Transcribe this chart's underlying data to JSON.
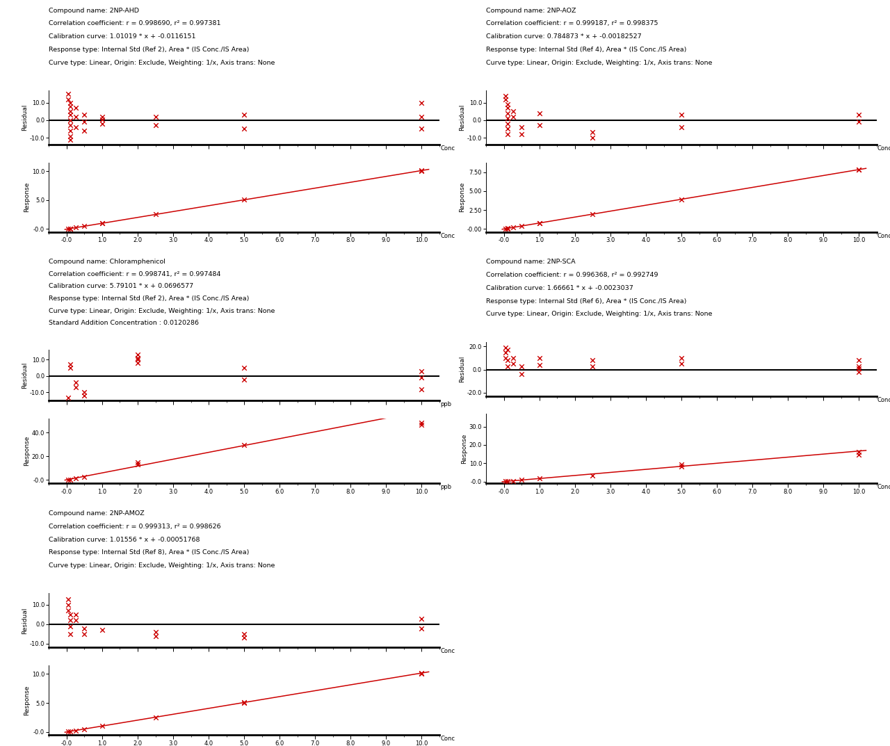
{
  "compounds": [
    {
      "name": "2NP-AHD",
      "info_lines": [
        "Compound name: 2NP-AHD",
        "Correlation coefficient: r = 0.998690, r² = 0.997381",
        "Calibration curve: 1.01019 * x + -0.0116151",
        "Response type: Internal Std (Ref 2), Area * (IS Conc./IS Area)",
        "Curve type: Linear, Origin: Exclude, Weighting: 1/x, Axis trans: None"
      ],
      "slope": 1.01019,
      "intercept": -0.0116151,
      "resp_x": [
        0.05,
        0.1,
        0.1,
        0.25,
        0.5,
        1.0,
        1.0,
        2.5,
        5.0,
        10.0,
        10.0
      ],
      "resp_y": [
        0.04,
        0.09,
        0.11,
        0.24,
        0.5,
        1.0,
        1.01,
        2.52,
        5.05,
        9.98,
        10.12
      ],
      "res_x": [
        0.05,
        0.05,
        0.1,
        0.1,
        0.1,
        0.1,
        0.1,
        0.1,
        0.1,
        0.1,
        0.1,
        0.25,
        0.25,
        0.25,
        0.5,
        0.5,
        0.5,
        1.0,
        1.0,
        1.0,
        2.5,
        2.5,
        5.0,
        5.0,
        10.0,
        10.0,
        10.0
      ],
      "res_y": [
        15,
        12,
        10,
        8,
        5,
        3,
        0,
        -3,
        -6,
        -9,
        -11,
        7,
        2,
        -4,
        3,
        -1,
        -6,
        -2,
        0.5,
        2,
        -3,
        2,
        3,
        -5,
        10,
        2,
        -5
      ],
      "xaxis_label": "Conc",
      "resp_ylim": [
        -0.5,
        11.5
      ],
      "resp_yticks": [
        0.0,
        5.0,
        10.0
      ],
      "resp_ytick_labels": [
        "-0.0",
        "5.0",
        "10.0"
      ],
      "res_ylim": [
        -14,
        17
      ],
      "res_yticks": [
        -10.0,
        0.0,
        10.0
      ],
      "res_ytick_labels": [
        "-10.0",
        "0.0",
        "10.0"
      ],
      "xlim": [
        -0.5,
        10.5
      ],
      "xticks": [
        0,
        1.0,
        2.0,
        3.0,
        4.0,
        5.0,
        6.0,
        7.0,
        8.0,
        9.0,
        10.0
      ],
      "xtick_labels": [
        "-0.0",
        "1.0",
        "2.0",
        "3.0",
        "4.0",
        "5.0",
        "6.0",
        "7.0",
        "8.0",
        "9.0",
        "10.0"
      ]
    },
    {
      "name": "2NP-AOZ",
      "info_lines": [
        "Compound name: 2NP-AOZ",
        "Correlation coefficient: r = 0.999187, r² = 0.998375",
        "Calibration curve: 0.784873 * x + -0.00182527",
        "Response type: Internal Std (Ref 4), Area * (IS Conc./IS Area)",
        "Curve type: Linear, Origin: Exclude, Weighting: 1/x, Axis trans: None"
      ],
      "slope": 0.784873,
      "intercept": -0.00182527,
      "resp_x": [
        0.05,
        0.1,
        0.1,
        0.25,
        0.5,
        1.0,
        1.0,
        2.5,
        5.0,
        10.0,
        10.0
      ],
      "resp_y": [
        0.03,
        0.07,
        0.09,
        0.2,
        0.39,
        0.78,
        0.8,
        1.98,
        3.93,
        7.8,
        7.88
      ],
      "res_x": [
        0.05,
        0.05,
        0.1,
        0.1,
        0.1,
        0.1,
        0.1,
        0.1,
        0.1,
        0.25,
        0.25,
        0.5,
        0.5,
        1.0,
        1.0,
        2.5,
        2.5,
        5.0,
        5.0,
        10.0,
        10.0
      ],
      "res_y": [
        14,
        12,
        9,
        7,
        4,
        1,
        -2,
        -5,
        -8,
        5,
        2,
        -4,
        -8,
        4,
        -3,
        -7,
        -10,
        3,
        -4,
        3,
        -1
      ],
      "xaxis_label": "Conc",
      "resp_ylim": [
        -0.4,
        8.8
      ],
      "resp_yticks": [
        0.0,
        2.5,
        5.0,
        7.5
      ],
      "resp_ytick_labels": [
        "-0.00",
        "2.50",
        "5.00",
        "7.50"
      ],
      "res_ylim": [
        -14,
        17
      ],
      "res_yticks": [
        -10.0,
        0.0,
        10.0
      ],
      "res_ytick_labels": [
        "-10.0",
        "0.0",
        "10.0"
      ],
      "xlim": [
        -0.5,
        10.5
      ],
      "xticks": [
        0,
        1.0,
        2.0,
        3.0,
        4.0,
        5.0,
        6.0,
        7.0,
        8.0,
        9.0,
        10.0
      ],
      "xtick_labels": [
        "-0.0",
        "1.0",
        "2.0",
        "3.0",
        "4.0",
        "5.0",
        "6.0",
        "7.0",
        "8.0",
        "9.0",
        "10.0"
      ]
    },
    {
      "name": "Chloramphenicol",
      "info_lines": [
        "Compound name: Chloramphenicol",
        "Correlation coefficient: r = 0.998741, r² = 0.997484",
        "Calibration curve: 5.79101 * x + 0.0696577",
        "Response type: Internal Std (Ref 2), Area * (IS Conc./IS Area)",
        "Curve type: Linear, Origin: Exclude, Weighting: 1/x, Axis trans: None",
        "Standard Addition Concentration : 0.0120286"
      ],
      "slope": 5.79101,
      "intercept": 0.0696577,
      "resp_x": [
        0.05,
        0.1,
        0.25,
        0.5,
        2.0,
        2.0,
        5.0,
        10.0,
        10.0
      ],
      "resp_y": [
        -0.2,
        0.2,
        1.2,
        2.7,
        13.0,
        14.5,
        29.5,
        46.5,
        48.0
      ],
      "res_x": [
        0.05,
        0.1,
        0.1,
        0.25,
        0.25,
        0.5,
        0.5,
        2.0,
        2.0,
        2.0,
        2.0,
        5.0,
        5.0,
        10.0,
        10.0,
        10.0
      ],
      "res_y": [
        -13,
        7,
        5,
        -4,
        -7,
        -10,
        -12,
        13,
        11,
        10,
        8,
        5,
        -2,
        3,
        -1,
        -8
      ],
      "xaxis_label": "ppb",
      "resp_ylim": [
        -3,
        52
      ],
      "resp_yticks": [
        0.0,
        20.0,
        40.0
      ],
      "resp_ytick_labels": [
        "-0.0",
        "20.0",
        "40.0"
      ],
      "res_ylim": [
        -15,
        16
      ],
      "res_yticks": [
        -10.0,
        0.0,
        10.0
      ],
      "res_ytick_labels": [
        "-10.0",
        "0.0",
        "10.0"
      ],
      "xlim": [
        -0.5,
        10.5
      ],
      "xticks": [
        0,
        1.0,
        2.0,
        3.0,
        4.0,
        5.0,
        6.0,
        7.0,
        8.0,
        9.0,
        10.0
      ],
      "xtick_labels": [
        "-0.0",
        "1.0",
        "2.0",
        "3.0",
        "4.0",
        "5.0",
        "6.0",
        "7.0",
        "8.0",
        "9.0",
        "10.0"
      ]
    },
    {
      "name": "2NP-SCA",
      "info_lines": [
        "Compound name: 2NP-SCA",
        "Correlation coefficient: r = 0.996368, r² = 0.992749",
        "Calibration curve: 1.66661 * x + -0.0023037",
        "Response type: Internal Std (Ref 6), Area * (IS Conc./IS Area)",
        "Curve type: Linear, Origin: Exclude, Weighting: 1/x, Axis trans: None"
      ],
      "slope": 1.66661,
      "intercept": -0.0023037,
      "resp_x": [
        0.05,
        0.1,
        0.25,
        0.5,
        1.0,
        2.5,
        5.0,
        5.0,
        10.0,
        10.0
      ],
      "resp_y": [
        0.05,
        0.15,
        0.4,
        0.82,
        1.65,
        3.2,
        8.3,
        9.2,
        14.5,
        16.0
      ],
      "res_x": [
        0.05,
        0.05,
        0.05,
        0.1,
        0.1,
        0.1,
        0.25,
        0.25,
        0.5,
        0.5,
        1.0,
        1.0,
        2.5,
        2.5,
        5.0,
        5.0,
        10.0,
        10.0,
        10.0,
        10.0
      ],
      "res_y": [
        19,
        15,
        10,
        17,
        8,
        3,
        10,
        5,
        3,
        -4,
        10,
        4,
        8,
        3,
        10,
        5,
        8,
        3,
        1,
        -2
      ],
      "xaxis_label": "Conc",
      "resp_ylim": [
        -1,
        37
      ],
      "resp_yticks": [
        0.0,
        10.0,
        20.0,
        30.0
      ],
      "resp_ytick_labels": [
        "-0.0",
        "10.0",
        "20.0",
        "30.0"
      ],
      "res_ylim": [
        -23,
        24
      ],
      "res_yticks": [
        -20.0,
        0.0,
        20.0
      ],
      "res_ytick_labels": [
        "-20.0",
        "0.0",
        "20.0"
      ],
      "xlim": [
        -0.5,
        10.5
      ],
      "xticks": [
        0,
        1.0,
        2.0,
        3.0,
        4.0,
        5.0,
        6.0,
        7.0,
        8.0,
        9.0,
        10.0
      ],
      "xtick_labels": [
        "-0.0",
        "1.0",
        "2.0",
        "3.0",
        "4.0",
        "5.0",
        "6.0",
        "7.0",
        "8.0",
        "9.0",
        "10.0"
      ]
    },
    {
      "name": "2NP-AMOZ",
      "info_lines": [
        "Compound name: 2NP-AMOZ",
        "Correlation coefficient: r = 0.999313, r² = 0.998626",
        "Calibration curve: 1.01556 * x + -0.00051768",
        "Response type: Internal Std (Ref 8), Area * (IS Conc./IS Area)",
        "Curve type: Linear, Origin: Exclude, Weighting: 1/x, Axis trans: None"
      ],
      "slope": 1.01556,
      "intercept": -0.00051768,
      "resp_x": [
        0.05,
        0.1,
        0.25,
        0.5,
        1.0,
        2.5,
        5.0,
        5.0,
        10.0,
        10.0
      ],
      "resp_y": [
        0.03,
        0.1,
        0.25,
        0.5,
        1.0,
        2.51,
        5.02,
        5.08,
        10.0,
        10.12
      ],
      "res_x": [
        0.05,
        0.05,
        0.05,
        0.1,
        0.1,
        0.1,
        0.1,
        0.25,
        0.25,
        0.5,
        0.5,
        1.0,
        2.5,
        2.5,
        5.0,
        5.0,
        10.0,
        10.0
      ],
      "res_y": [
        13,
        10,
        7,
        5,
        2,
        -1,
        -5,
        5,
        2,
        -2,
        -5,
        -3,
        -4,
        -6,
        -5,
        -7,
        3,
        -2
      ],
      "xaxis_label": "Conc",
      "resp_ylim": [
        -0.5,
        11.5
      ],
      "resp_yticks": [
        0.0,
        5.0,
        10.0
      ],
      "resp_ytick_labels": [
        "-0.0",
        "5.0",
        "10.0"
      ],
      "res_ylim": [
        -12,
        16
      ],
      "res_yticks": [
        -10.0,
        0.0,
        10.0
      ],
      "res_ytick_labels": [
        "-10.0",
        "0.0",
        "10.0"
      ],
      "xlim": [
        -0.5,
        10.5
      ],
      "xticks": [
        0,
        1.0,
        2.0,
        3.0,
        4.0,
        5.0,
        6.0,
        7.0,
        8.0,
        9.0,
        10.0
      ],
      "xtick_labels": [
        "-0.0",
        "1.0",
        "2.0",
        "3.0",
        "4.0",
        "5.0",
        "6.0",
        "7.0",
        "8.0",
        "9.0",
        "10.0"
      ]
    }
  ],
  "marker_color": "#cc0000",
  "line_color": "#cc0000",
  "line_color_zero": "#000000",
  "background_color": "#ffffff",
  "text_color": "#000000",
  "font_size_info": 6.8,
  "font_size_axis_label": 6.5,
  "font_size_tick": 6.0
}
